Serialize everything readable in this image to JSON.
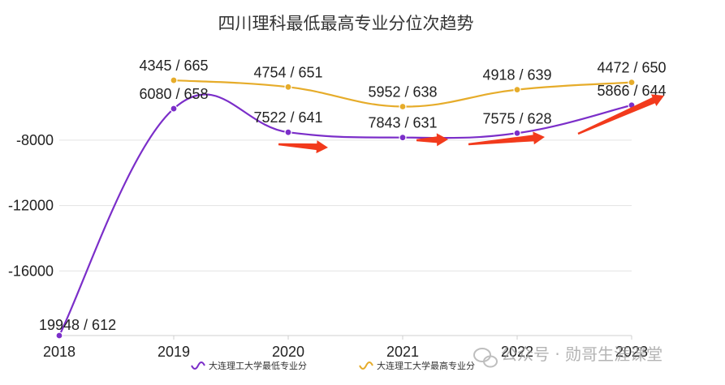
{
  "chart_data": {
    "type": "line",
    "title": "四川理科最低最高专业分位次趋势",
    "xlabel": "",
    "ylabel": "",
    "categories": [
      "2018",
      "2019",
      "2020",
      "2021",
      "2022",
      "2023"
    ],
    "y_ticks": [
      "-8000",
      "-12000",
      "-16000"
    ],
    "ylim": [
      -19948,
      -3500
    ],
    "grid": true,
    "legend_position": "bottom",
    "series": [
      {
        "name": "大连理工大学最低专业分",
        "color": "#7b2ec9",
        "values": [
          -19948,
          -6080,
          -7522,
          -7843,
          -7575,
          -5866
        ],
        "labels": [
          "19948 / 612",
          "6080 / 658",
          "7522 / 641",
          "7843 / 631",
          "7575 / 628",
          "5866 / 644"
        ]
      },
      {
        "name": "大连理工大学最高专业分",
        "color": "#e6ac2a",
        "values": [
          null,
          -4345,
          -4754,
          -5952,
          -4918,
          -4472
        ],
        "labels": [
          null,
          "4345 / 665",
          "4754 / 651",
          "5952 / 638",
          "4918 / 639",
          "4472 / 650"
        ]
      }
    ],
    "annotations": [
      "red trend arrows pointing upward-right below the low-score line"
    ]
  },
  "watermark": "公众号 · 勋哥生涯课堂",
  "colors": {
    "arrow": "#f23a1c",
    "axis": "#cfcfcf",
    "grid": "#e3e3e3"
  }
}
